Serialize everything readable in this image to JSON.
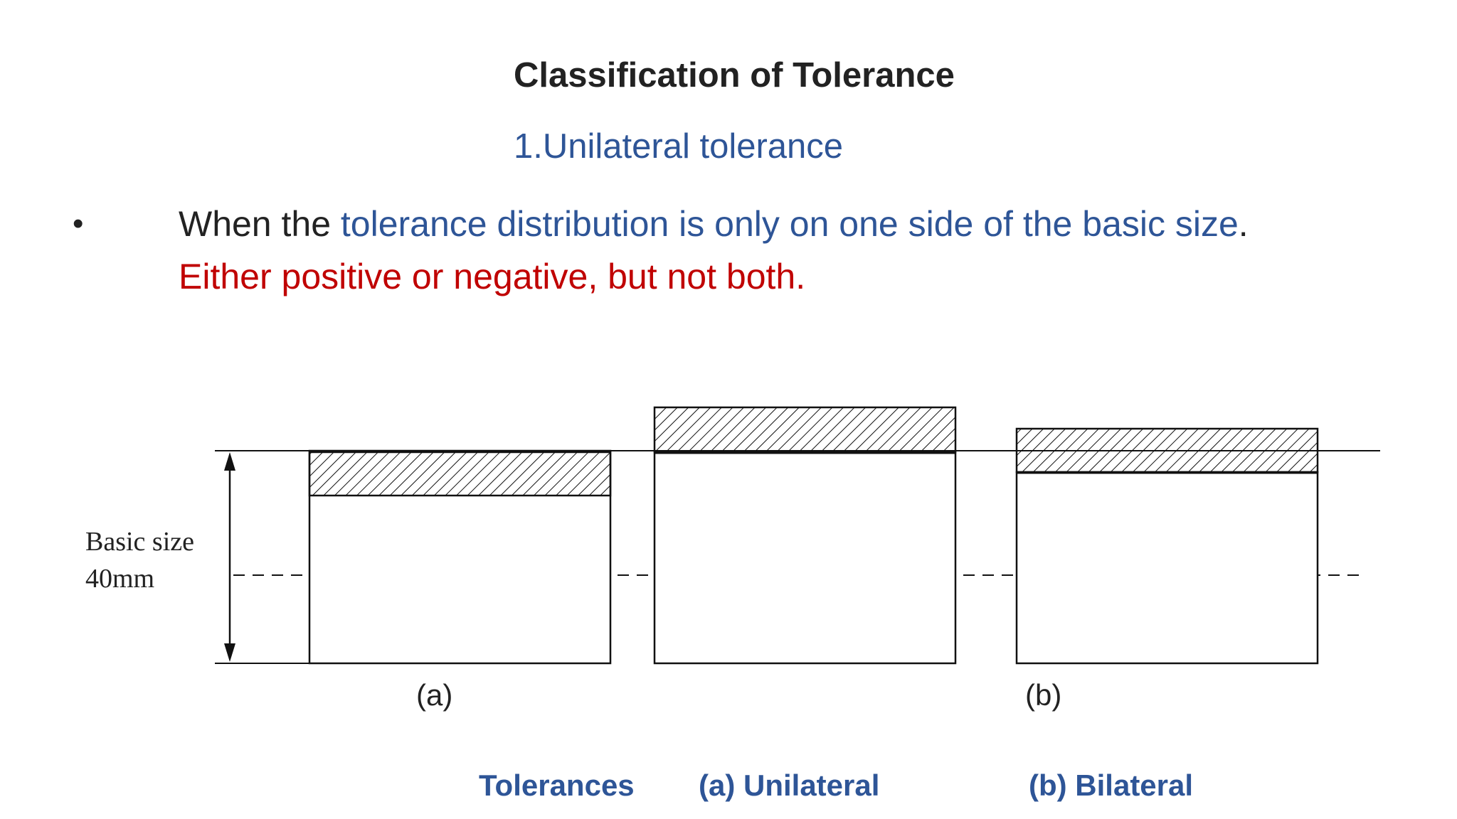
{
  "slide": {
    "title": "Classification of Tolerance",
    "subtitle": "1.Unilateral tolerance",
    "bullet": {
      "marker": "•",
      "line1_prefix": "When the ",
      "line1_highlight": "tolerance distribution is only on one side of the basic size",
      "line1_suffix": ".",
      "line2": "Either positive or negative, but not both."
    }
  },
  "diagram": {
    "basic_size_label": "Basic size",
    "basic_size_value": "40mm",
    "label_a": "(a)",
    "label_b": "(b)"
  },
  "captions": {
    "tolerances": "Tolerances",
    "unilateral": "(a) Unilateral",
    "bilateral": "(b) Bilateral"
  },
  "colors": {
    "title": "#222222",
    "accent_blue": "#2e5597",
    "accent_red": "#c00000"
  }
}
